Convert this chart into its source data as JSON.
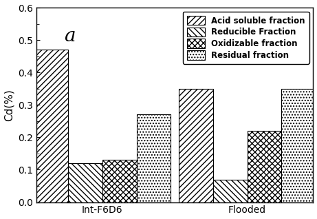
{
  "groups": [
    "Int-F6D6",
    "Flooded"
  ],
  "fractions": [
    "Acid soluble fraction",
    "Reducible Fraction",
    "Oxidizable fraction",
    "Residual fraction"
  ],
  "values": {
    "Int-F6D6": [
      0.47,
      0.12,
      0.13,
      0.27
    ],
    "Flooded": [
      0.35,
      0.07,
      0.22,
      0.35
    ]
  },
  "hatches": [
    "////",
    "\\\\\\\\\\\\\\\\",
    "\\\\\\\\\\\\\\\\",
    "...."
  ],
  "bar_color": "white",
  "edge_color": "black",
  "ylabel": "Cd(%)",
  "ylim": [
    0.0,
    0.6
  ],
  "yticks": [
    0.0,
    0.1,
    0.2,
    0.3,
    0.4,
    0.5,
    0.6
  ],
  "annotation": "a",
  "bar_width": 0.13,
  "group_centers": [
    0.3,
    0.85
  ],
  "xlim": [
    0.05,
    1.1
  ],
  "legend_fontsize": 8.5,
  "axis_fontsize": 11,
  "tick_labelsize": 10
}
